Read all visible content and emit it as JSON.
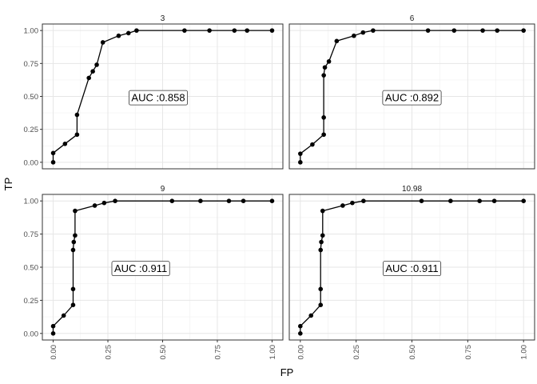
{
  "chart_data": {
    "type": "line",
    "xlabel": "FP",
    "ylabel": "TP",
    "xlim": [
      0,
      1
    ],
    "ylim": [
      0,
      1
    ],
    "x_ticks": [
      "0.00",
      "0.25",
      "0.50",
      "0.75",
      "1.00"
    ],
    "y_ticks": [
      "0.00",
      "0.25",
      "0.50",
      "0.75",
      "1.00"
    ],
    "grid": true,
    "panels": [
      {
        "strip": "3",
        "auc_label": "AUC :0.858",
        "auc_pos": [
          0.48,
          0.49
        ],
        "x": [
          0,
          0,
          0.054,
          0.109,
          0.109,
          0.163,
          0.181,
          0.199,
          0.227,
          0.299,
          0.344,
          0.381,
          0.6,
          0.714,
          0.828,
          0.886,
          1.0
        ],
        "y": [
          0,
          0.07,
          0.14,
          0.21,
          0.36,
          0.64,
          0.69,
          0.74,
          0.91,
          0.96,
          0.98,
          1.0,
          1.0,
          1.0,
          1.0,
          1.0,
          1.0
        ]
      },
      {
        "strip": "6",
        "auc_label": "AUC :0.892",
        "auc_pos": [
          0.5,
          0.49
        ],
        "x": [
          0,
          0,
          0.054,
          0.105,
          0.105,
          0.105,
          0.11,
          0.128,
          0.163,
          0.24,
          0.281,
          0.326,
          0.572,
          0.689,
          0.817,
          0.882,
          1.0
        ],
        "y": [
          0,
          0.065,
          0.135,
          0.21,
          0.34,
          0.66,
          0.72,
          0.765,
          0.92,
          0.96,
          0.985,
          1.0,
          1.0,
          1.0,
          1.0,
          1.0,
          1.0
        ]
      },
      {
        "strip": "9",
        "auc_label": "AUC :0.911",
        "auc_pos": [
          0.4,
          0.49
        ],
        "x": [
          0,
          0,
          0.048,
          0.091,
          0.091,
          0.091,
          0.094,
          0.1,
          0.1,
          0.19,
          0.233,
          0.283,
          0.543,
          0.673,
          0.803,
          0.869,
          1.0
        ],
        "y": [
          0,
          0.055,
          0.135,
          0.215,
          0.335,
          0.63,
          0.69,
          0.74,
          0.925,
          0.965,
          0.985,
          1.0,
          1.0,
          1.0,
          1.0,
          1.0,
          1.0
        ]
      },
      {
        "strip": "10.98",
        "auc_label": "AUC :0.911",
        "auc_pos": [
          0.5,
          0.49
        ],
        "x": [
          0,
          0,
          0.048,
          0.091,
          0.091,
          0.091,
          0.094,
          0.1,
          0.1,
          0.19,
          0.233,
          0.283,
          0.543,
          0.673,
          0.803,
          0.869,
          1.0
        ],
        "y": [
          0,
          0.055,
          0.135,
          0.215,
          0.335,
          0.63,
          0.69,
          0.74,
          0.925,
          0.965,
          0.985,
          1.0,
          1.0,
          1.0,
          1.0,
          1.0,
          1.0
        ]
      }
    ]
  }
}
